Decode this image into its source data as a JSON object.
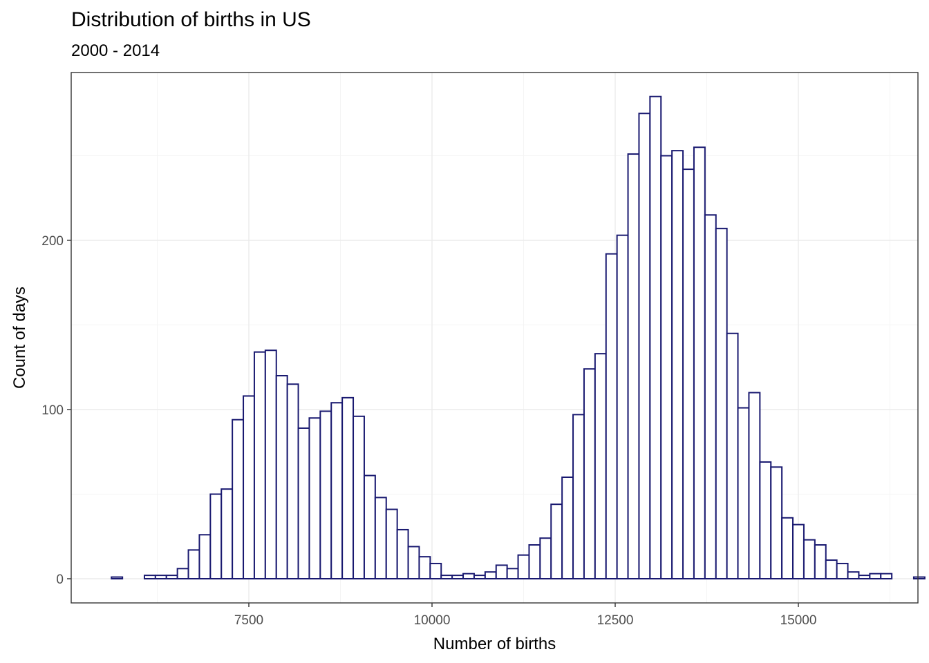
{
  "title": "Distribution of births in US",
  "subtitle": "2000 - 2014",
  "colors": {
    "bar_outline": "#191970",
    "bar_fill": "#ffffff",
    "grid_major": "#ebebeb",
    "grid_minor": "#f4f4f4",
    "panel_border": "#333333"
  },
  "chart_data": {
    "type": "bar",
    "title": "Distribution of births in US",
    "subtitle": "2000 - 2014",
    "xlabel": "Number of births",
    "ylabel": "Count of days",
    "bin_width": 150,
    "bin_start": 5625,
    "xlim": [
      5300,
      16400
    ],
    "ylim": [
      0,
      285
    ],
    "x_ticks": [
      7500,
      10000,
      12500,
      15000
    ],
    "x_tick_labels": [
      "7500",
      "10000",
      "12500",
      "15000"
    ],
    "y_ticks": [
      0,
      100,
      200
    ],
    "y_tick_labels": [
      "0",
      "100",
      "200"
    ],
    "grid": true,
    "legend": "none",
    "values": [
      1,
      0,
      0,
      2,
      2,
      2,
      6,
      17,
      26,
      50,
      53,
      94,
      108,
      134,
      135,
      120,
      115,
      89,
      95,
      99,
      104,
      107,
      96,
      61,
      48,
      41,
      29,
      19,
      13,
      9,
      2,
      2,
      3,
      2,
      4,
      8,
      6,
      14,
      20,
      24,
      44,
      60,
      97,
      124,
      133,
      192,
      203,
      251,
      275,
      285,
      250,
      253,
      242,
      255,
      215,
      207,
      145,
      101,
      110,
      69,
      66,
      36,
      32,
      23,
      20,
      11,
      9,
      4,
      2,
      3,
      3,
      0,
      0,
      1
    ]
  }
}
